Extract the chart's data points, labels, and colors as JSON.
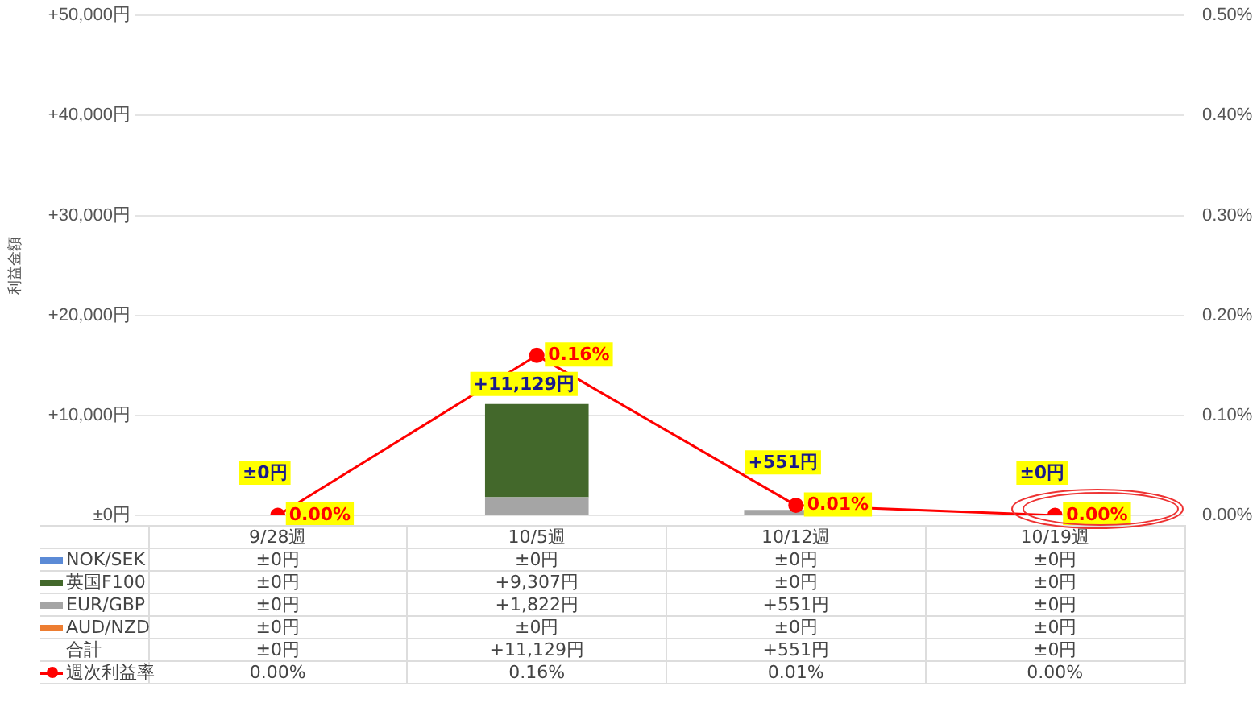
{
  "chart_data": {
    "type": "bar",
    "stacked": true,
    "ylabel": "利益金額",
    "categories": [
      "9/28週",
      "10/5週",
      "10/12週",
      "10/19週"
    ],
    "series": [
      {
        "name": "AUD/NZD",
        "color": "#ed7d31",
        "values": [
          0,
          0,
          0,
          0
        ],
        "value_labels": [
          "±0円",
          "±0円",
          "±0円",
          "±0円"
        ]
      },
      {
        "name": "EUR/GBP",
        "color": "#a5a5a5",
        "values": [
          0,
          1822,
          551,
          0
        ],
        "value_labels": [
          "±0円",
          "+1,822円",
          "+551円",
          "±0円"
        ]
      },
      {
        "name": "英国F100",
        "color": "#43682b",
        "values": [
          0,
          9307,
          0,
          0
        ],
        "value_labels": [
          "±0円",
          "+9,307円",
          "±0円",
          "±0円"
        ]
      },
      {
        "name": "NOK/SEK",
        "color": "#5b8ad6",
        "values": [
          0,
          0,
          0,
          0
        ],
        "value_labels": [
          "±0円",
          "±0円",
          "±0円",
          "±0円"
        ]
      },
      {
        "name": "週次利益率",
        "type": "line",
        "axis": "y2",
        "color": "#ff0000",
        "values": [
          0.0,
          0.16,
          0.01,
          0.0
        ],
        "value_labels": [
          "0.00%",
          "0.16%",
          "0.01%",
          "0.00%"
        ]
      }
    ],
    "totals": [
      "±0円",
      "+11,129円",
      "+551円",
      "±0円"
    ],
    "annotations": [
      "合計"
    ],
    "ylim": [
      0,
      50000
    ],
    "yticks": [
      {
        "value": 0,
        "label": "±0円"
      },
      {
        "value": 10000,
        "label": "+10,000円"
      },
      {
        "value": 20000,
        "label": "+20,000円"
      },
      {
        "value": 30000,
        "label": "+30,000円"
      },
      {
        "value": 40000,
        "label": "+40,000円"
      },
      {
        "value": 50000,
        "label": "+50,000円"
      }
    ],
    "y2lim": [
      0,
      0.5
    ],
    "y2ticks": [
      {
        "value": 0,
        "label": "0.00%"
      },
      {
        "value": 0.1,
        "label": "0.10%"
      },
      {
        "value": 0.2,
        "label": "0.20%"
      },
      {
        "value": 0.3,
        "label": "0.30%"
      },
      {
        "value": 0.4,
        "label": "0.40%"
      },
      {
        "value": 0.5,
        "label": "0.50%"
      }
    ],
    "grid": "y",
    "legend": "bottom",
    "marker": "circle",
    "line_style": "solid"
  }
}
